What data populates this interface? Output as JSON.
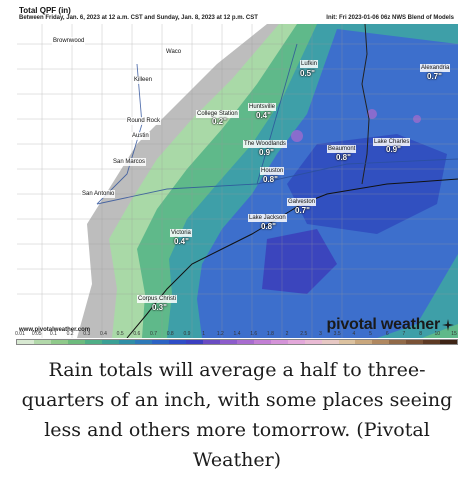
{
  "header": {
    "title": "Total QPF (in)",
    "range": "Between Friday, Jan. 6, 2023 at 12 a.m. CST and Sunday, Jan. 8, 2023 at 12 p.m. CST",
    "init": "Init: Fri 2023-01-06 06z NWS Blend of Models"
  },
  "footer": {
    "url": "www.pivotalweather.com",
    "brand": "pivotal weather"
  },
  "cities": [
    {
      "name": "Brownwood"
    },
    {
      "name": "Waco"
    },
    {
      "name": "Killeen"
    },
    {
      "name": "Round Rock"
    },
    {
      "name": "Austin"
    },
    {
      "name": "San Marcos"
    },
    {
      "name": "San Antonio"
    },
    {
      "name": "College Station"
    },
    {
      "name": "Huntsville"
    },
    {
      "name": "Lufkin"
    },
    {
      "name": "Alexandria"
    },
    {
      "name": "The Woodlands"
    },
    {
      "name": "Beaumont"
    },
    {
      "name": "Lake Charles"
    },
    {
      "name": "Houston"
    },
    {
      "name": "Galveston"
    },
    {
      "name": "Lake Jackson"
    },
    {
      "name": "Victoria"
    },
    {
      "name": "Corpus Christi"
    }
  ],
  "values": [
    {
      "city": "Lufkin",
      "text": "0.5\""
    },
    {
      "city": "Alexandria",
      "text": "0.7\""
    },
    {
      "city": "College Station",
      "text": "0.2\""
    },
    {
      "city": "Huntsville",
      "text": "0.4\""
    },
    {
      "city": "The Woodlands",
      "text": "0.9\""
    },
    {
      "city": "Beaumont",
      "text": "0.8\""
    },
    {
      "city": "Lake Charles",
      "text": "0.9\""
    },
    {
      "city": "Houston",
      "text": "0.8\""
    },
    {
      "city": "Galveston",
      "text": "0.7\""
    },
    {
      "city": "Lake Jackson",
      "text": "0.8\""
    },
    {
      "city": "Victoria",
      "text": "0.4\""
    },
    {
      "city": "Corpus Christi",
      "text": "0.3\""
    }
  ],
  "legend": {
    "ticks": [
      "0.01",
      "0.05",
      "0.1",
      "0.2",
      "0.3",
      "0.4",
      "0.5",
      "0.6",
      "0.7",
      "0.8",
      "0.9",
      "1",
      "1.2",
      "1.4",
      "1.6",
      "1.8",
      "2",
      "2.5",
      "3",
      "3.5",
      "4",
      "5",
      "6",
      "7",
      "8",
      "10",
      "15"
    ],
    "colors": [
      "#d8e9d2",
      "#b2d8aa",
      "#8fc98a",
      "#6dbb7d",
      "#4fae86",
      "#3aa095",
      "#2f8ea6",
      "#2d79b8",
      "#2c63c4",
      "#2f4dc7",
      "#3b3fc0",
      "#6a4cc2",
      "#8c5ccb",
      "#a86ccf",
      "#c27fd4",
      "#d493d8",
      "#e3a8da",
      "#e9bad4",
      "#e7c8c4",
      "#dcc2a0",
      "#c9a77d",
      "#b08860",
      "#916a48",
      "#7a5236",
      "#5e3a24",
      "#3e2416"
    ]
  },
  "caption": "Rain totals will average a half to three-quarters of an inch, with some places seeing less and others more tomorrow. (Pivotal Weather)"
}
